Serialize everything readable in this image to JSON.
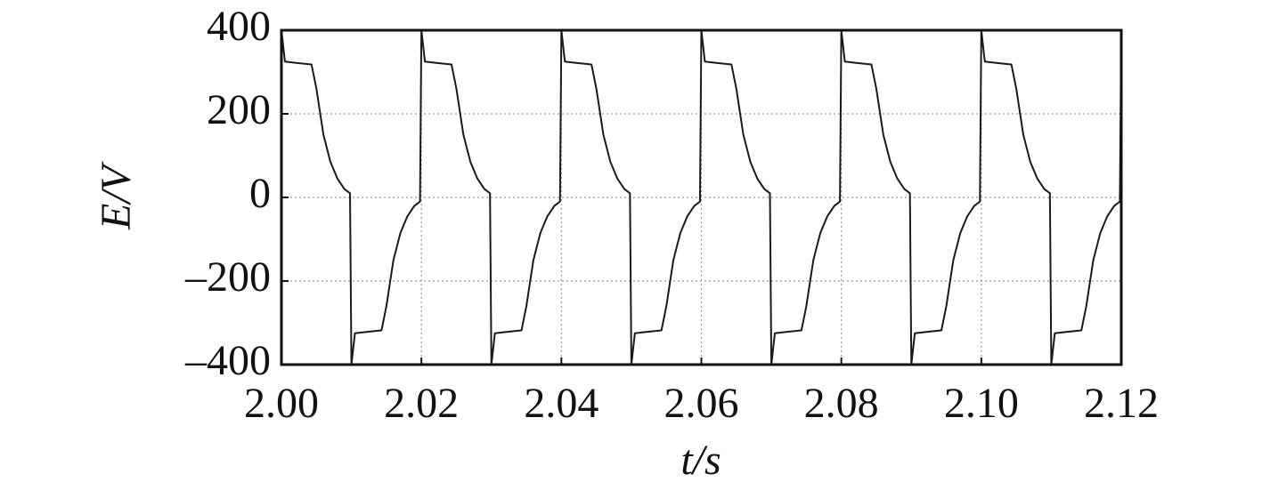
{
  "chart_data": {
    "type": "line",
    "xlabel": "t/s",
    "ylabel": "E/V",
    "x": [
      2.0,
      2.0005,
      2.002,
      2.0043,
      2.005,
      2.006,
      2.007,
      2.008,
      2.009,
      2.0098,
      2.01,
      2.0105,
      2.012,
      2.0143,
      2.015,
      2.016,
      2.017,
      2.018,
      2.019,
      2.0198,
      2.02,
      2.0205,
      2.022,
      2.0243,
      2.025,
      2.026,
      2.027,
      2.028,
      2.029,
      2.0298,
      2.03,
      2.0305,
      2.032,
      2.0343,
      2.035,
      2.036,
      2.037,
      2.038,
      2.039,
      2.0398,
      2.04,
      2.0405,
      2.042,
      2.0443,
      2.045,
      2.046,
      2.047,
      2.048,
      2.049,
      2.0498,
      2.05,
      2.0505,
      2.052,
      2.0543,
      2.055,
      2.056,
      2.057,
      2.058,
      2.059,
      2.0598,
      2.06,
      2.0605,
      2.062,
      2.0643,
      2.065,
      2.066,
      2.067,
      2.068,
      2.069,
      2.0698,
      2.07,
      2.0705,
      2.072,
      2.0743,
      2.075,
      2.076,
      2.077,
      2.078,
      2.079,
      2.0798,
      2.08,
      2.0805,
      2.082,
      2.0843,
      2.085,
      2.086,
      2.087,
      2.088,
      2.089,
      2.0898,
      2.09,
      2.0905,
      2.092,
      2.0943,
      2.095,
      2.096,
      2.097,
      2.098,
      2.099,
      2.0998,
      2.1,
      2.1005,
      2.102,
      2.1043,
      2.105,
      2.106,
      2.107,
      2.108,
      2.109,
      2.1098,
      2.11,
      2.1105,
      2.112,
      2.1143,
      2.115,
      2.116,
      2.117,
      2.118,
      2.119,
      2.1198,
      2.12
    ],
    "series": [
      {
        "color": "#1a1a1a",
        "values": [
          400,
          325,
          322,
          318,
          260,
          150,
          85,
          45,
          20,
          10,
          -400,
          -325,
          -322,
          -318,
          -260,
          -150,
          -85,
          -45,
          -20,
          -10,
          400,
          325,
          322,
          318,
          260,
          150,
          85,
          45,
          20,
          10,
          -400,
          -325,
          -322,
          -318,
          -260,
          -150,
          -85,
          -45,
          -20,
          -10,
          400,
          325,
          322,
          318,
          260,
          150,
          85,
          45,
          20,
          10,
          -400,
          -325,
          -322,
          -318,
          -260,
          -150,
          -85,
          -45,
          -20,
          -10,
          400,
          325,
          322,
          318,
          260,
          150,
          85,
          45,
          20,
          10,
          -400,
          -325,
          -322,
          -318,
          -260,
          -150,
          -85,
          -45,
          -20,
          -10,
          400,
          325,
          322,
          318,
          260,
          150,
          85,
          45,
          20,
          10,
          -400,
          -325,
          -322,
          -318,
          -260,
          -150,
          -85,
          -45,
          -20,
          -10,
          400,
          325,
          322,
          318,
          260,
          150,
          85,
          45,
          20,
          10,
          -400,
          -325,
          -322,
          -318,
          -260,
          -150,
          -85,
          -45,
          -20,
          -10,
          400
        ]
      }
    ],
    "xlim": [
      2.0,
      2.12
    ],
    "xticks": [
      {
        "value": 2.0,
        "label": "2.00"
      },
      {
        "value": 2.02,
        "label": "2.02"
      },
      {
        "value": 2.04,
        "label": "2.04"
      },
      {
        "value": 2.06,
        "label": "2.06"
      },
      {
        "value": 2.08,
        "label": "2.08"
      },
      {
        "value": 2.1,
        "label": "2.10"
      },
      {
        "value": 2.12,
        "label": "2.12"
      }
    ],
    "ylim": [
      -400,
      400
    ],
    "yticks": [
      {
        "value": -400,
        "label": "–400"
      },
      {
        "value": -200,
        "label": "–200"
      },
      0,
      200,
      400
    ],
    "grid": true
  }
}
